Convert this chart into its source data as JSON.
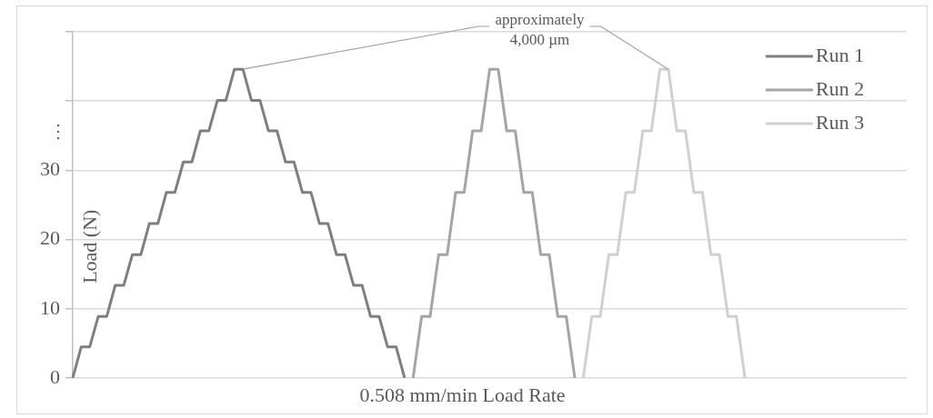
{
  "chart_data": {
    "type": "line",
    "xlabel": "0.508 mm/min Load Rate",
    "ylabel": "Load (N)",
    "categories": [
      null,
      null,
      null,
      null,
      null,
      null,
      null,
      null,
      null,
      null,
      null,
      null,
      null,
      null,
      null,
      null,
      null,
      null,
      null,
      null,
      null,
      null,
      null,
      null,
      null,
      null,
      null,
      null,
      null,
      null,
      null,
      null,
      null,
      null,
      null,
      null,
      null,
      null,
      null,
      null,
      null,
      null,
      null,
      null,
      null,
      null,
      null,
      null,
      null,
      null,
      null,
      null,
      null,
      null,
      null,
      null,
      null,
      null,
      null,
      null,
      null,
      null,
      null,
      null,
      null,
      null,
      null,
      null,
      null,
      null,
      null,
      null,
      null,
      null,
      null,
      null,
      null,
      null,
      null,
      null,
      null,
      null,
      null,
      null,
      null,
      null,
      null,
      null,
      null,
      null,
      null,
      null,
      null,
      null,
      null,
      null,
      null,
      null,
      null
    ],
    "ylim": [
      0,
      50
    ],
    "yticks": [
      0,
      10,
      20,
      30,
      {
        "value": 40,
        "label": null
      },
      {
        "value": 50,
        "label": null
      }
    ],
    "tick_labels": "y",
    "grid": "y",
    "legend": "top right",
    "marker": "none",
    "line_style": "solid",
    "annotations": [
      "approximately\n4,000 µm",
      "⋮"
    ],
    "series": [
      {
        "name": "Run 1",
        "color": "#7f7f7f",
        "values": [
          0,
          4.5,
          4.5,
          8.9,
          8.9,
          13.4,
          13.4,
          17.8,
          17.8,
          22.3,
          22.3,
          26.8,
          26.8,
          31.2,
          31.2,
          35.7,
          35.7,
          40.1,
          40.1,
          44.6,
          44.6,
          40.1,
          40.1,
          35.7,
          35.7,
          31.2,
          31.2,
          26.8,
          26.8,
          22.3,
          22.3,
          17.8,
          17.8,
          13.4,
          13.4,
          8.9,
          8.9,
          4.5,
          4.5,
          0,
          null,
          null,
          null,
          null,
          null,
          null,
          null,
          null,
          null,
          null,
          null,
          null,
          null,
          null,
          null,
          null,
          null,
          null,
          null,
          null,
          null,
          null,
          null,
          null,
          null,
          null,
          null,
          null,
          null,
          null,
          null,
          null,
          null,
          null,
          null,
          null,
          null,
          null,
          null,
          null,
          null,
          null,
          null,
          null,
          null,
          null,
          null,
          null,
          null,
          null,
          null,
          null,
          null,
          null,
          null,
          null,
          null,
          null,
          null
        ]
      },
      {
        "name": "Run 2",
        "color": "#a5a5a5",
        "values": [
          null,
          null,
          null,
          null,
          null,
          null,
          null,
          null,
          null,
          null,
          null,
          null,
          null,
          null,
          null,
          null,
          null,
          null,
          null,
          null,
          null,
          null,
          null,
          null,
          null,
          null,
          null,
          null,
          null,
          null,
          null,
          null,
          null,
          null,
          null,
          null,
          null,
          null,
          null,
          null,
          0,
          8.9,
          8.9,
          17.8,
          17.8,
          26.8,
          26.8,
          35.7,
          35.7,
          44.6,
          44.6,
          35.7,
          35.7,
          26.8,
          26.8,
          17.8,
          17.8,
          8.9,
          8.9,
          0,
          null,
          null,
          null,
          null,
          null,
          null,
          null,
          null,
          null,
          null,
          null,
          null,
          null,
          null,
          null,
          null,
          null,
          null,
          null,
          null,
          null,
          null,
          null,
          null,
          null,
          null,
          null,
          null,
          null,
          null,
          null,
          null,
          null,
          null,
          null,
          null,
          null,
          null,
          null
        ]
      },
      {
        "name": "Run 3",
        "color": "#d0d0d0",
        "values": [
          null,
          null,
          null,
          null,
          null,
          null,
          null,
          null,
          null,
          null,
          null,
          null,
          null,
          null,
          null,
          null,
          null,
          null,
          null,
          null,
          null,
          null,
          null,
          null,
          null,
          null,
          null,
          null,
          null,
          null,
          null,
          null,
          null,
          null,
          null,
          null,
          null,
          null,
          null,
          null,
          null,
          null,
          null,
          null,
          null,
          null,
          null,
          null,
          null,
          null,
          null,
          null,
          null,
          null,
          null,
          null,
          null,
          null,
          null,
          null,
          0,
          8.9,
          8.9,
          17.8,
          17.8,
          26.8,
          26.8,
          35.7,
          35.7,
          44.6,
          44.6,
          35.7,
          35.7,
          26.8,
          26.8,
          17.8,
          17.8,
          8.9,
          8.9,
          0,
          null,
          null,
          null,
          null,
          null,
          null,
          null,
          null,
          null,
          null,
          null,
          null,
          null,
          null,
          null,
          null,
          null,
          null,
          null
        ]
      }
    ]
  }
}
